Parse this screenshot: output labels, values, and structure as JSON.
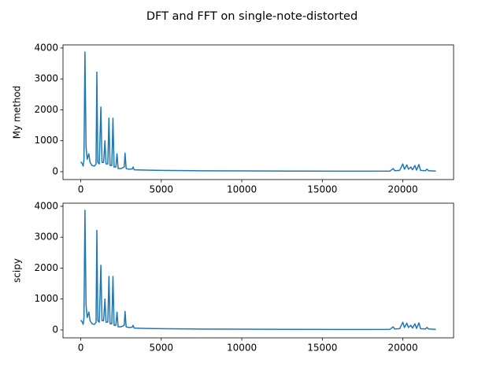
{
  "title": "DFT and FFT on single-note-distorted",
  "chart_data": [
    {
      "type": "line",
      "ylabel": "My method",
      "color": "#1f77b4",
      "x": [
        0,
        100,
        150,
        200,
        260,
        330,
        400,
        500,
        580,
        700,
        850,
        950,
        1000,
        1060,
        1150,
        1250,
        1320,
        1420,
        1500,
        1570,
        1680,
        1750,
        1820,
        1930,
        2000,
        2070,
        2180,
        2250,
        2320,
        2500,
        2700,
        2750,
        2820,
        3000,
        3200,
        3250,
        3320,
        4000,
        5000,
        7000,
        10000,
        13000,
        16000,
        18000,
        19200,
        19400,
        19500,
        19800,
        20000,
        20100,
        20250,
        20350,
        20500,
        20600,
        20750,
        20850,
        21000,
        21100,
        21400,
        21500,
        21600,
        22050
      ],
      "values": [
        320,
        250,
        180,
        400,
        3870,
        800,
        400,
        580,
        300,
        200,
        180,
        250,
        3220,
        300,
        250,
        2090,
        300,
        300,
        1000,
        250,
        250,
        1730,
        200,
        200,
        1730,
        150,
        150,
        580,
        100,
        100,
        150,
        600,
        100,
        80,
        90,
        150,
        60,
        50,
        40,
        30,
        25,
        20,
        15,
        15,
        20,
        100,
        30,
        40,
        250,
        80,
        220,
        80,
        150,
        60,
        200,
        50,
        230,
        40,
        30,
        80,
        30,
        20
      ],
      "xlim": [
        -1102.5,
        23152.5
      ],
      "ylim": [
        -255,
        4100
      ],
      "xticks": [
        0,
        5000,
        10000,
        15000,
        20000
      ],
      "yticks": [
        0,
        1000,
        2000,
        3000,
        4000
      ]
    },
    {
      "type": "line",
      "ylabel": "scipy",
      "color": "#1f77b4",
      "x": [
        0,
        100,
        150,
        200,
        260,
        330,
        400,
        500,
        580,
        700,
        850,
        950,
        1000,
        1060,
        1150,
        1250,
        1320,
        1420,
        1500,
        1570,
        1680,
        1750,
        1820,
        1930,
        2000,
        2070,
        2180,
        2250,
        2320,
        2500,
        2700,
        2750,
        2820,
        3000,
        3200,
        3250,
        3320,
        4000,
        5000,
        7000,
        10000,
        13000,
        16000,
        18000,
        19200,
        19400,
        19500,
        19800,
        20000,
        20100,
        20250,
        20350,
        20500,
        20600,
        20750,
        20850,
        21000,
        21100,
        21400,
        21500,
        21600,
        22050
      ],
      "values": [
        320,
        250,
        180,
        400,
        3870,
        800,
        400,
        580,
        300,
        200,
        180,
        250,
        3220,
        300,
        250,
        2090,
        300,
        300,
        1000,
        250,
        250,
        1730,
        200,
        200,
        1730,
        150,
        150,
        580,
        100,
        100,
        150,
        600,
        100,
        80,
        90,
        150,
        60,
        50,
        40,
        30,
        25,
        20,
        15,
        15,
        20,
        100,
        30,
        40,
        250,
        80,
        220,
        80,
        150,
        60,
        200,
        50,
        230,
        40,
        30,
        80,
        30,
        20
      ],
      "xlim": [
        -1102.5,
        23152.5
      ],
      "ylim": [
        -255,
        4100
      ],
      "xticks": [
        0,
        5000,
        10000,
        15000,
        20000
      ],
      "yticks": [
        0,
        1000,
        2000,
        3000,
        4000
      ]
    }
  ]
}
